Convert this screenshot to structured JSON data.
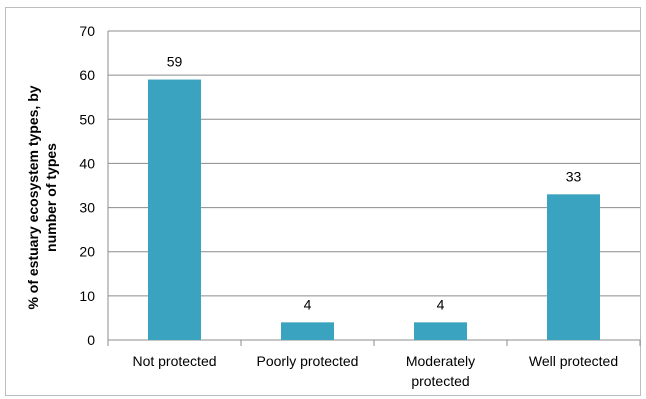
{
  "chart_data": {
    "type": "bar",
    "categories": [
      [
        "Not protected"
      ],
      [
        "Poorly protected"
      ],
      [
        "Moderately",
        "protected"
      ],
      [
        "Well protected"
      ]
    ],
    "values": [
      59,
      4,
      4,
      33
    ],
    "data_labels": [
      "59",
      "4",
      "4",
      "33"
    ],
    "title": "",
    "xlabel": "",
    "ylabel": [
      "% of estuary ecosystem types, by",
      "number of types"
    ],
    "ylim": [
      0,
      70
    ],
    "yticks": [
      0,
      10,
      20,
      30,
      40,
      50,
      60,
      70
    ],
    "grid": true,
    "bar_color": "#3aa3bf",
    "grid_color": "#8c8c8c"
  }
}
